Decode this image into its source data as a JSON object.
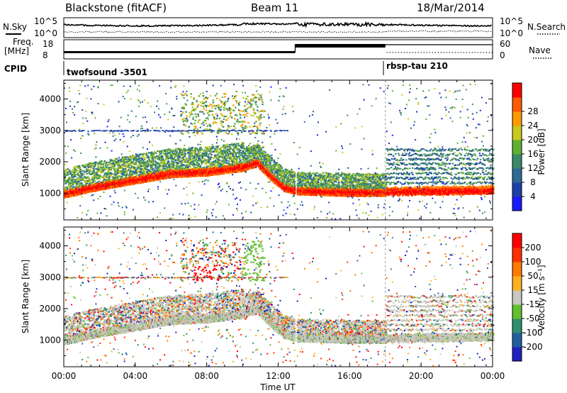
{
  "header": {
    "station": "Blackstone (fitACF)",
    "beam": "Beam 11",
    "date": "18/Mar/2014"
  },
  "panels": {
    "nsky_label": "N.Sky",
    "nsearch_label": "N.Search",
    "noise_ticks": [
      "10^5",
      "10^0"
    ],
    "freq_label_line1": "Freq.",
    "freq_label_line2": "[MHz]",
    "freq_ticks": [
      "18",
      "8"
    ],
    "nave_label": "Nave",
    "nave_ticks": [
      "60",
      "0"
    ],
    "cpid_label": "CPID",
    "cpid_entries": [
      {
        "name": "twofsound -3501",
        "start_hour": 0
      },
      {
        "name": "rbsp-tau 210",
        "start_hour": 18
      }
    ]
  },
  "colors": {
    "power_scale": [
      "#1a1aff",
      "#1f3fa8",
      "#2d6a96",
      "#3a8a6a",
      "#5fb030",
      "#c8c820",
      "#ff9a00",
      "#ff5a00",
      "#ff0000"
    ],
    "velocity_scale": [
      "#2020c0",
      "#1f5fa0",
      "#2f8f70",
      "#60c030",
      "#c8c8c0",
      "#ffb020",
      "#ff7a00",
      "#ff3000",
      "#ff0000"
    ]
  },
  "chart_data": [
    {
      "type": "heatmap",
      "panel": "power",
      "xlabel": "Time UT",
      "ylabel": "Slant Range [km]",
      "xlim": [
        0,
        24
      ],
      "ylim": [
        150,
        4600
      ],
      "x_ticks": [
        "00:00",
        "04:00",
        "08:00",
        "12:00",
        "16:00",
        "20:00",
        "00:00"
      ],
      "y_ticks": [
        "1000",
        "2000",
        "3000",
        "4000"
      ],
      "colorbar_label": "Power [dB]",
      "colorbar_ticks": [
        "4",
        "8",
        "12",
        "16",
        "20",
        "24",
        "28"
      ],
      "main_echo_band_km": {
        "x_hours": [
          0,
          2,
          4,
          6,
          8,
          10,
          10.8,
          11.5,
          12.3,
          13,
          16,
          18,
          18.2,
          24
        ],
        "y_km": [
          1000,
          1250,
          1450,
          1650,
          1700,
          1850,
          2000,
          1600,
          1200,
          1100,
          1050,
          1050,
          1050,
          1100
        ]
      }
    },
    {
      "type": "heatmap",
      "panel": "velocity",
      "xlabel": "Time UT",
      "ylabel": "Slant Range [km]",
      "xlim": [
        0,
        24
      ],
      "ylim": [
        150,
        4600
      ],
      "x_ticks": [
        "00:00",
        "04:00",
        "08:00",
        "12:00",
        "16:00",
        "20:00",
        "00:00"
      ],
      "y_ticks": [
        "1000",
        "2000",
        "3000",
        "4000"
      ],
      "colorbar_label": "Velocity [m s⁻¹]",
      "colorbar_ticks": [
        "200",
        "100",
        "50",
        "15",
        "-15",
        "-50",
        "-100",
        "-200"
      ]
    }
  ]
}
